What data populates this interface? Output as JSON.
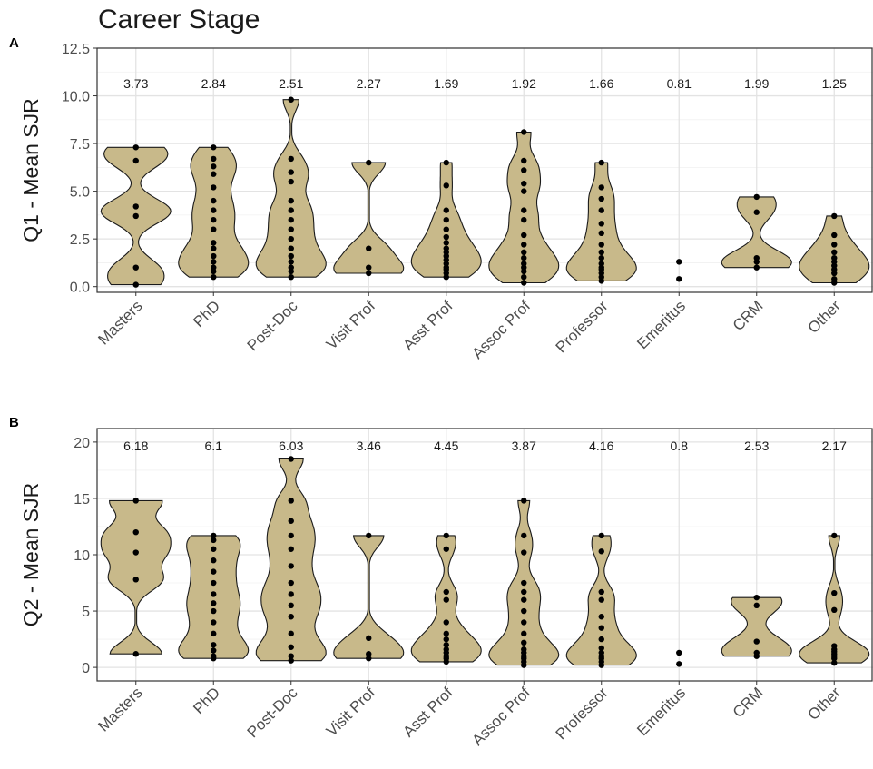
{
  "figure": {
    "title": "Career Stage"
  },
  "colors": {
    "violin_fill": "#c8b98a",
    "violin_stroke": "#1a1a1a",
    "point": "#000000"
  },
  "chart_data": [
    {
      "panel": "A",
      "type": "violin",
      "ylabel": "Q1 - Mean SJR",
      "xlabel": "",
      "ylim": [
        -0.3,
        12.5
      ],
      "yticks": [
        0.0,
        2.5,
        5.0,
        7.5,
        10.0,
        12.5
      ],
      "ytick_labels": [
        "0.0",
        "2.5",
        "5.0",
        "7.5",
        "10.0",
        "12.5"
      ],
      "grid": true,
      "categories": [
        "Masters",
        "PhD",
        "Post-Doc",
        "Visit Prof",
        "Asst Prof",
        "Assoc Prof",
        "Professor",
        "Emeritus",
        "CRM",
        "Other"
      ],
      "mean_labels": [
        "3.73",
        "2.84",
        "2.51",
        "2.27",
        "1.69",
        "1.92",
        "1.66",
        "0.81",
        "1.99",
        "1.25"
      ],
      "points": [
        [
          0.1,
          1.0,
          3.7,
          4.2,
          6.6,
          7.3
        ],
        [
          0.5,
          0.8,
          1.0,
          1.3,
          1.6,
          2.0,
          2.3,
          3.0,
          3.5,
          4.0,
          4.5,
          5.2,
          5.9,
          6.3,
          6.7,
          7.3
        ],
        [
          0.5,
          0.8,
          1.0,
          1.3,
          1.6,
          2.0,
          2.5,
          3.0,
          3.5,
          4.0,
          4.5,
          5.5,
          6.0,
          6.7,
          9.8
        ],
        [
          0.7,
          1.0,
          2.0,
          6.5
        ],
        [
          0.5,
          0.7,
          0.9,
          1.0,
          1.2,
          1.4,
          1.6,
          1.8,
          2.0,
          2.3,
          2.6,
          3.0,
          3.5,
          4.0,
          5.3,
          6.5
        ],
        [
          0.2,
          0.5,
          0.8,
          1.0,
          1.2,
          1.5,
          1.8,
          2.2,
          2.7,
          3.5,
          4.0,
          5.0,
          5.4,
          6.1,
          6.6,
          8.1
        ],
        [
          0.3,
          0.5,
          0.7,
          0.9,
          1.0,
          1.2,
          1.5,
          1.8,
          2.2,
          2.8,
          3.3,
          4.0,
          4.6,
          5.2,
          6.5
        ],
        [
          0.4,
          1.3
        ],
        [
          1.0,
          1.3,
          1.5,
          3.9,
          4.7
        ],
        [
          0.2,
          0.4,
          0.7,
          0.9,
          1.1,
          1.3,
          1.5,
          1.8,
          2.2,
          2.7,
          3.7
        ]
      ]
    },
    {
      "panel": "B",
      "type": "violin",
      "ylabel": "Q2 - Mean SJR",
      "xlabel": "",
      "ylim": [
        -1.2,
        21.2
      ],
      "yticks": [
        0,
        5,
        10,
        15,
        20
      ],
      "ytick_labels": [
        "0",
        "5",
        "10",
        "15",
        "20"
      ],
      "grid": true,
      "categories": [
        "Masters",
        "PhD",
        "Post-Doc",
        "Visit Prof",
        "Asst Prof",
        "Assoc Prof",
        "Professor",
        "Emeritus",
        "CRM",
        "Other"
      ],
      "mean_labels": [
        "6.18",
        "6.1",
        "6.03",
        "3.46",
        "4.45",
        "3.87",
        "4.16",
        "0.8",
        "2.53",
        "2.17"
      ],
      "points": [
        [
          1.2,
          7.8,
          10.2,
          12.0,
          14.8
        ],
        [
          0.8,
          1.0,
          1.5,
          2.0,
          3.0,
          4.0,
          5.0,
          5.7,
          6.5,
          7.5,
          8.5,
          9.5,
          10.5,
          11.3,
          11.7
        ],
        [
          0.6,
          1.0,
          1.8,
          3.0,
          4.5,
          5.5,
          6.5,
          7.5,
          9.0,
          10.5,
          11.7,
          13.0,
          14.8,
          18.5
        ],
        [
          0.8,
          1.2,
          2.6,
          11.7
        ],
        [
          0.5,
          0.8,
          1.0,
          1.3,
          1.6,
          2.0,
          2.5,
          3.0,
          4.0,
          6.0,
          6.7,
          10.5,
          11.7
        ],
        [
          0.2,
          0.5,
          0.8,
          1.0,
          1.3,
          1.6,
          2.2,
          3.0,
          4.0,
          5.0,
          6.0,
          6.7,
          7.5,
          10.2,
          11.7,
          14.8
        ],
        [
          0.2,
          0.5,
          0.8,
          1.0,
          1.3,
          1.7,
          2.5,
          3.5,
          4.5,
          6.0,
          6.7,
          10.3,
          11.7
        ],
        [
          0.3,
          1.3
        ],
        [
          1.0,
          1.3,
          2.3,
          5.5,
          6.2
        ],
        [
          0.4,
          0.8,
          1.0,
          1.2,
          1.4,
          1.6,
          1.9,
          5.1,
          6.6,
          11.7
        ]
      ]
    }
  ]
}
